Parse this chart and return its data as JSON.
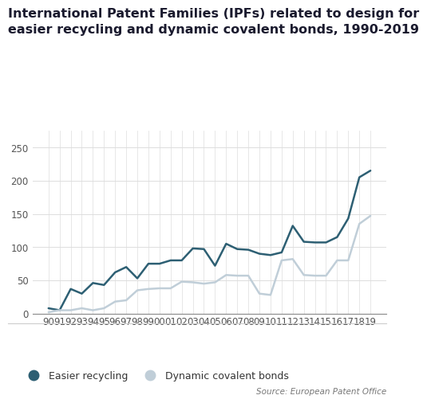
{
  "title_line1": "International Patent Families (IPFs) related to design for",
  "title_line2": "easier recycling and dynamic covalent bonds, 1990-2019",
  "years": [
    "90",
    "91",
    "92",
    "93",
    "94",
    "95",
    "96",
    "97",
    "98",
    "99",
    "00",
    "01",
    "02",
    "03",
    "04",
    "05",
    "06",
    "07",
    "08",
    "09",
    "10",
    "11",
    "12",
    "13",
    "14",
    "15",
    "16",
    "17",
    "18",
    "19"
  ],
  "easier_recycling": [
    8,
    5,
    37,
    30,
    46,
    43,
    62,
    70,
    53,
    75,
    75,
    80,
    80,
    98,
    97,
    72,
    105,
    97,
    96,
    90,
    88,
    92,
    132,
    108,
    107,
    107,
    115,
    143,
    205,
    215
  ],
  "dynamic_covalent": [
    2,
    5,
    5,
    8,
    5,
    8,
    18,
    20,
    35,
    37,
    38,
    38,
    48,
    47,
    45,
    47,
    58,
    57,
    57,
    30,
    28,
    80,
    82,
    58,
    57,
    57,
    80,
    80,
    135,
    147
  ],
  "easier_recycling_color": "#2d5f73",
  "dynamic_covalent_color": "#c0ced8",
  "background_color": "#ffffff",
  "source_text": "Source: European Patent Office",
  "legend_easier": "Easier recycling",
  "legend_dynamic": "Dynamic covalent bonds",
  "ylim": [
    0,
    275
  ],
  "yticks": [
    0,
    50,
    100,
    150,
    200,
    250
  ],
  "grid_color": "#dddddd",
  "title_fontsize": 11.5,
  "tick_fontsize": 8.5,
  "source_fontsize": 7.5
}
